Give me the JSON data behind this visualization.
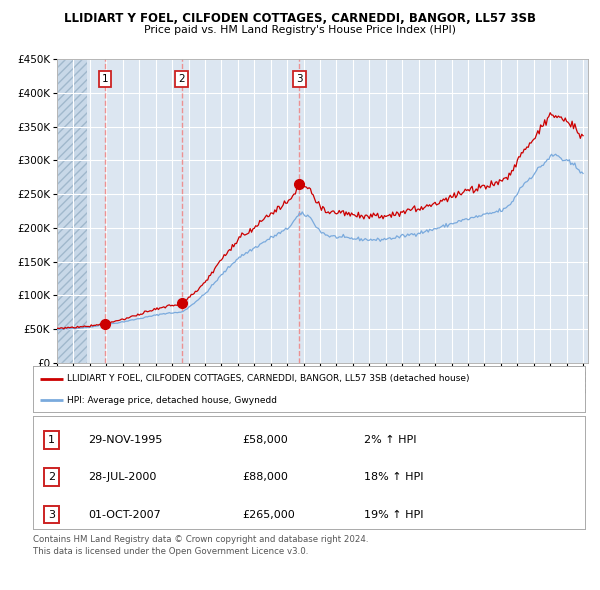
{
  "title1": "LLIDIART Y FOEL, CILFODEN COTTAGES, CARNEDDI, BANGOR, LL57 3SB",
  "title2": "Price paid vs. HM Land Registry's House Price Index (HPI)",
  "legend_red": "LLIDIART Y FOEL, CILFODEN COTTAGES, CARNEDDI, BANGOR, LL57 3SB (detached house)",
  "legend_blue": "HPI: Average price, detached house, Gwynedd",
  "footer1": "Contains HM Land Registry data © Crown copyright and database right 2024.",
  "footer2": "This data is licensed under the Open Government Licence v3.0.",
  "sales": [
    {
      "num": 1,
      "date": "29-NOV-1995",
      "price": "£58,000",
      "hpi_pct": "2% ↑ HPI",
      "x_year": 1995.92,
      "y_val": 58000
    },
    {
      "num": 2,
      "date": "28-JUL-2000",
      "price": "£88,000",
      "hpi_pct": "18% ↑ HPI",
      "x_year": 2000.58,
      "y_val": 88000
    },
    {
      "num": 3,
      "date": "01-OCT-2007",
      "price": "£265,000",
      "hpi_pct": "19% ↑ HPI",
      "x_year": 2007.75,
      "y_val": 265000
    }
  ],
  "ylim": [
    0,
    450000
  ],
  "yticks": [
    0,
    50000,
    100000,
    150000,
    200000,
    250000,
    300000,
    350000,
    400000,
    450000
  ],
  "xlim_start": 1993,
  "xlim_end": 2025.3,
  "bg_color": "#dce6f1",
  "hatch_bg": "#c8d8e8",
  "red_line_color": "#cc0000",
  "blue_line_color": "#7aaadd",
  "sale_dot_color": "#cc0000",
  "vline_color": "#ee8888",
  "grid_color": "#ffffff",
  "number_box_edge": "#cc2222"
}
